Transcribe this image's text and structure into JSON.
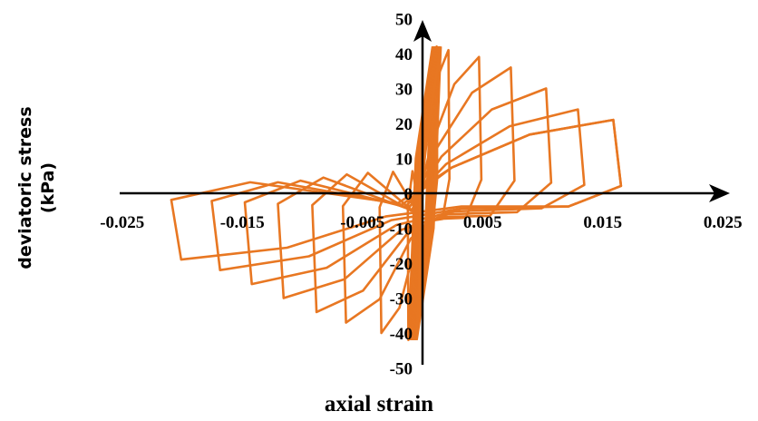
{
  "chart_data": {
    "type": "line",
    "title": "",
    "xlabel": "axial strain",
    "ylabel_lines": [
      "deviatoric stress",
      "(kPa)"
    ],
    "xlim": [
      -0.025,
      0.025
    ],
    "ylim": [
      -50,
      50
    ],
    "x_ticks": [
      {
        "value": -0.025,
        "label": "-0.025"
      },
      {
        "value": -0.015,
        "label": "-0.015"
      },
      {
        "value": -0.005,
        "label": "-0.005"
      },
      {
        "value": 0.005,
        "label": "0.005"
      },
      {
        "value": 0.015,
        "label": "0.015"
      },
      {
        "value": 0.025,
        "label": "0.025"
      }
    ],
    "y_ticks": [
      {
        "value": 50,
        "label": "50"
      },
      {
        "value": 40,
        "label": "40"
      },
      {
        "value": 30,
        "label": "30"
      },
      {
        "value": 20,
        "label": "20"
      },
      {
        "value": 10,
        "label": "10"
      },
      {
        "value": 0,
        "label": "0"
      },
      {
        "value": -10,
        "label": "-10"
      },
      {
        "value": -20,
        "label": "-20"
      },
      {
        "value": -30,
        "label": "-30"
      },
      {
        "value": -40,
        "label": "-40"
      },
      {
        "value": -50,
        "label": "-50"
      }
    ],
    "grid": false,
    "legend": "none",
    "series_color": "#E87722",
    "series": [
      {
        "name": "",
        "cycles": [
          {
            "positive_peak": [
              0.0012,
              42
            ],
            "negative_peak": [
              -0.0012,
              -42
            ]
          },
          {
            "positive_peak": [
              0.0022,
              41
            ],
            "negative_peak": [
              -0.0035,
              -40
            ]
          },
          {
            "positive_peak": [
              0.0048,
              39
            ],
            "negative_peak": [
              -0.0065,
              -37
            ]
          },
          {
            "positive_peak": [
              0.0075,
              36
            ],
            "negative_peak": [
              -0.009,
              -34
            ]
          },
          {
            "positive_peak": [
              0.0105,
              30
            ],
            "negative_peak": [
              -0.0118,
              -30
            ]
          },
          {
            "positive_peak": [
              0.0132,
              24
            ],
            "negative_peak": [
              -0.0145,
              -26
            ]
          },
          {
            "positive_peak": [
              0.0162,
              21
            ],
            "negative_peak": [
              -0.0172,
              -22
            ]
          },
          {
            "positive_peak": [
              0.0162,
              21
            ],
            "negative_peak": [
              -0.0205,
              -19
            ]
          }
        ]
      }
    ]
  }
}
